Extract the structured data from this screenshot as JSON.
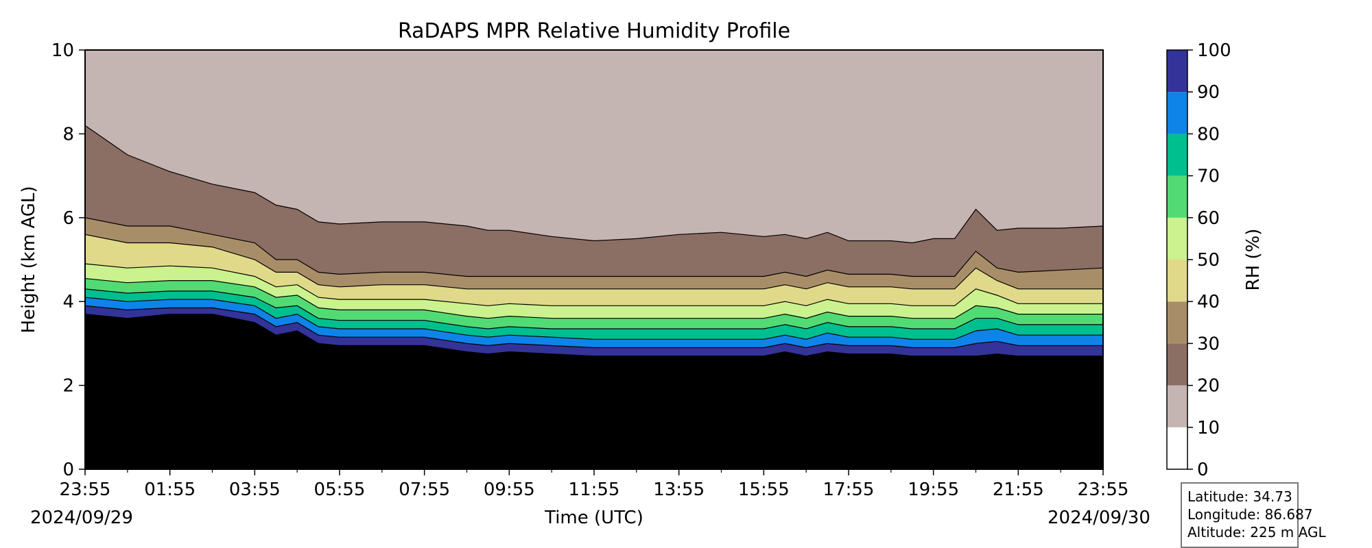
{
  "chart_data": {
    "type": "heatmap",
    "subtype": "filled-contour",
    "title": "RaDAPS MPR Relative Humidity Profile",
    "xlabel": "Time (UTC)",
    "ylabel": "Height (km AGL)",
    "x_ticks": [
      "23:55",
      "01:55",
      "03:55",
      "05:55",
      "07:55",
      "09:55",
      "11:55",
      "13:55",
      "15:55",
      "17:55",
      "19:55",
      "21:55",
      "23:55"
    ],
    "x_range_hours": [
      0,
      24
    ],
    "start_date": "2024/09/29",
    "end_date": "2024/09/30",
    "y_ticks": [
      0,
      2,
      4,
      6,
      8,
      10
    ],
    "ylim": [
      0,
      10
    ],
    "colorbar": {
      "label": "RH (%)",
      "levels": [
        0,
        10,
        20,
        30,
        40,
        50,
        60,
        70,
        80,
        90,
        100
      ],
      "colors": [
        "#ffffff",
        "#c5b5b2",
        "#8b6e64",
        "#a88e68",
        "#e0d98a",
        "#cbf28f",
        "#52db74",
        "#00bf8f",
        "#0e84e8",
        "#333399"
      ]
    },
    "contour_boundaries_km": {
      "times_h": [
        0,
        1,
        2,
        3,
        4,
        4.5,
        5,
        5.5,
        6,
        7,
        8,
        9,
        9.5,
        10,
        11,
        12,
        13,
        14,
        15,
        16,
        16.5,
        17,
        17.5,
        18,
        19,
        19.5,
        20,
        20.5,
        21,
        21.5,
        22,
        23,
        24
      ],
      "rh90": [
        3.7,
        3.6,
        3.7,
        3.7,
        3.5,
        3.2,
        3.3,
        3.0,
        2.95,
        2.95,
        2.95,
        2.8,
        2.75,
        2.8,
        2.75,
        2.7,
        2.7,
        2.7,
        2.7,
        2.7,
        2.8,
        2.7,
        2.8,
        2.75,
        2.75,
        2.7,
        2.7,
        2.7,
        2.7,
        2.75,
        2.7,
        2.7,
        2.7
      ],
      "rh80": [
        3.9,
        3.8,
        3.85,
        3.85,
        3.7,
        3.4,
        3.5,
        3.2,
        3.15,
        3.15,
        3.15,
        3.0,
        2.95,
        3.0,
        2.95,
        2.9,
        2.9,
        2.9,
        2.9,
        2.9,
        3.0,
        2.9,
        3.0,
        2.95,
        2.95,
        2.9,
        2.9,
        2.9,
        3.0,
        3.05,
        2.95,
        2.95,
        2.95
      ],
      "rh70": [
        4.1,
        4.0,
        4.05,
        4.05,
        3.9,
        3.6,
        3.7,
        3.4,
        3.35,
        3.35,
        3.35,
        3.2,
        3.15,
        3.2,
        3.15,
        3.1,
        3.1,
        3.1,
        3.1,
        3.1,
        3.2,
        3.1,
        3.25,
        3.15,
        3.15,
        3.1,
        3.1,
        3.1,
        3.3,
        3.35,
        3.2,
        3.2,
        3.2
      ],
      "rh60": [
        4.3,
        4.2,
        4.25,
        4.25,
        4.1,
        3.85,
        3.9,
        3.6,
        3.55,
        3.55,
        3.55,
        3.4,
        3.35,
        3.4,
        3.35,
        3.35,
        3.35,
        3.35,
        3.35,
        3.35,
        3.45,
        3.35,
        3.5,
        3.4,
        3.4,
        3.35,
        3.35,
        3.35,
        3.6,
        3.6,
        3.45,
        3.45,
        3.45
      ],
      "rh50": [
        4.55,
        4.45,
        4.5,
        4.5,
        4.35,
        4.1,
        4.15,
        3.85,
        3.8,
        3.8,
        3.8,
        3.65,
        3.6,
        3.65,
        3.6,
        3.6,
        3.6,
        3.6,
        3.6,
        3.6,
        3.7,
        3.6,
        3.75,
        3.65,
        3.65,
        3.6,
        3.6,
        3.6,
        3.9,
        3.85,
        3.7,
        3.7,
        3.7
      ],
      "rh40": [
        4.9,
        4.8,
        4.85,
        4.8,
        4.6,
        4.35,
        4.4,
        4.1,
        4.05,
        4.05,
        4.05,
        3.95,
        3.9,
        3.95,
        3.9,
        3.9,
        3.9,
        3.9,
        3.9,
        3.9,
        4.0,
        3.9,
        4.05,
        3.95,
        3.95,
        3.9,
        3.9,
        3.9,
        4.3,
        4.15,
        3.95,
        3.95,
        3.95
      ],
      "rh30": [
        5.6,
        5.4,
        5.4,
        5.3,
        5.0,
        4.7,
        4.7,
        4.4,
        4.35,
        4.4,
        4.4,
        4.3,
        4.3,
        4.3,
        4.3,
        4.3,
        4.3,
        4.3,
        4.3,
        4.3,
        4.4,
        4.3,
        4.45,
        4.35,
        4.35,
        4.3,
        4.3,
        4.3,
        4.8,
        4.5,
        4.3,
        4.3,
        4.3
      ],
      "rh20": [
        6.0,
        5.8,
        5.8,
        5.6,
        5.4,
        5.0,
        5.0,
        4.7,
        4.65,
        4.7,
        4.7,
        4.6,
        4.6,
        4.6,
        4.6,
        4.6,
        4.6,
        4.6,
        4.6,
        4.6,
        4.7,
        4.6,
        4.75,
        4.65,
        4.65,
        4.6,
        4.6,
        4.6,
        5.2,
        4.8,
        4.7,
        4.75,
        4.8
      ],
      "rh10": [
        8.2,
        7.5,
        7.1,
        6.8,
        6.6,
        6.3,
        6.2,
        5.9,
        5.85,
        5.9,
        5.9,
        5.8,
        5.7,
        5.7,
        5.55,
        5.45,
        5.5,
        5.6,
        5.65,
        5.55,
        5.6,
        5.5,
        5.65,
        5.45,
        5.45,
        5.4,
        5.5,
        5.5,
        6.2,
        5.7,
        5.75,
        5.75,
        5.8
      ]
    },
    "grid": false,
    "legend": "colorbar-right"
  },
  "station": {
    "latitude": "Latitude: 34.73",
    "longitude": "Longitude: 86.687",
    "altitude": "Altitude: 225 m AGL"
  }
}
